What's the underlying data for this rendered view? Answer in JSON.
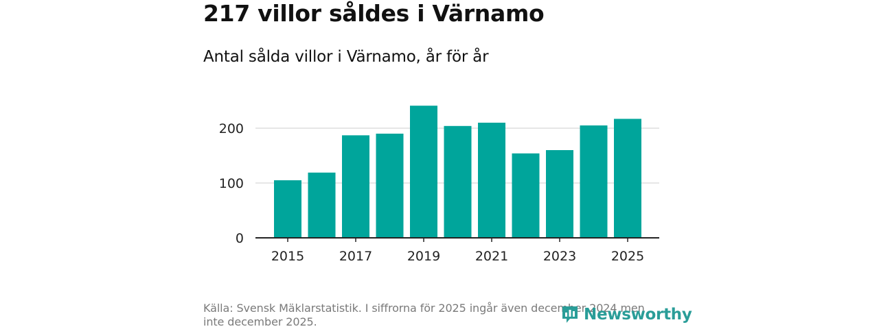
{
  "header": {
    "title": "217 villor såldes i Värnamo",
    "subtitle": "Antal sålda villor i Värnamo, år för år"
  },
  "footer": {
    "source_note": "Källa: Svensk Mäklarstatistik. I siffrorna för 2025 ingår även december 2024 men inte december 2025.",
    "brand": "Newsworthy",
    "brand_icon": "newsworthy-logo-icon"
  },
  "colors": {
    "bar": "#00a59b",
    "grid": "#dddddd",
    "axis": "#222222",
    "tick_text": "#222222",
    "brand": "#2a9d98"
  },
  "chart_data": {
    "type": "bar",
    "title": "Antal sålda villor i Värnamo, år för år",
    "xlabel": "",
    "ylabel": "",
    "categories": [
      "2015",
      "2016",
      "2017",
      "2018",
      "2019",
      "2020",
      "2021",
      "2022",
      "2023",
      "2024",
      "2025"
    ],
    "values": [
      105,
      119,
      187,
      190,
      241,
      204,
      210,
      154,
      160,
      205,
      217
    ],
    "x_tick_labels": [
      "2015",
      "2017",
      "2019",
      "2021",
      "2023",
      "2025"
    ],
    "y_ticks": [
      0,
      100,
      200
    ],
    "ylim": [
      0,
      250
    ],
    "grid": true,
    "legend": "none"
  }
}
